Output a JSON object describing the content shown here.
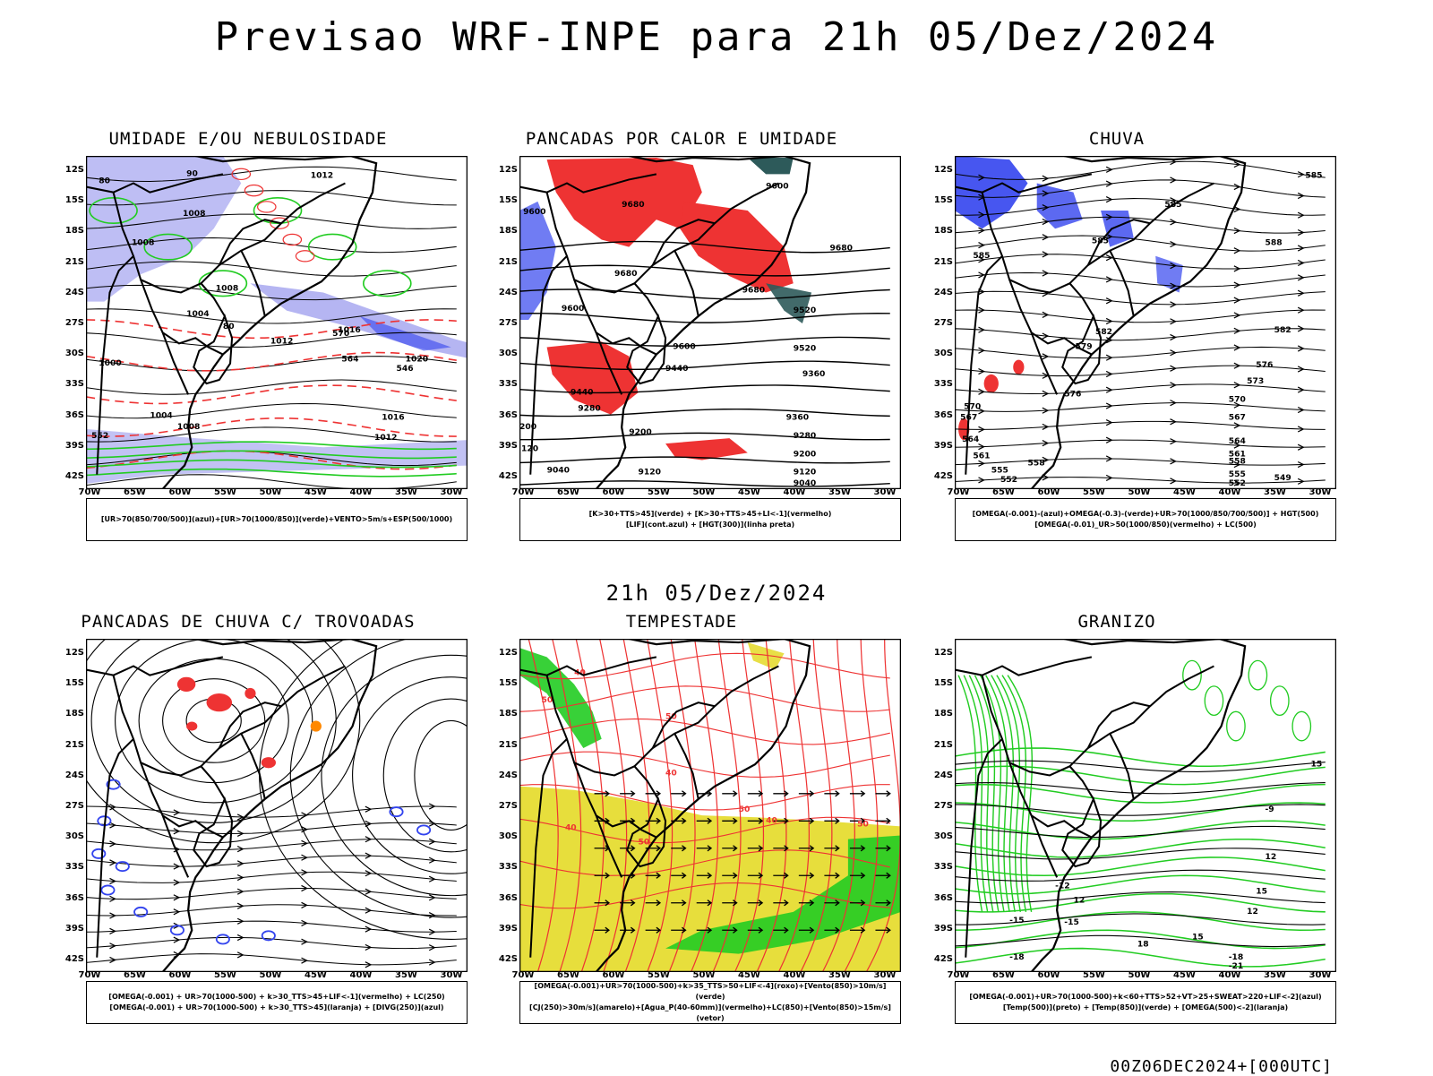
{
  "title": "Previsao WRF-INPE  para 21h 05/Dez/2024",
  "mid_label": "21h 05/Dez/2024",
  "footer": "00Z06DEC2024+[000UTC]",
  "lat_labels": [
    "12S",
    "15S",
    "18S",
    "21S",
    "24S",
    "27S",
    "30S",
    "33S",
    "36S",
    "39S",
    "42S"
  ],
  "lon_labels": [
    "70W",
    "65W",
    "60W",
    "55W",
    "50W",
    "45W",
    "40W",
    "35W",
    "30W"
  ],
  "colors": {
    "blue": "#3344ee",
    "lavender": "#a8a8f0",
    "green": "#22cc22",
    "red": "#ee3333",
    "dark_teal": "#2d5a5a",
    "yellow": "#e6dc32",
    "orange": "#ff8800"
  },
  "panels": [
    {
      "title": "UMIDADE E/OU NEBULOSIDADE",
      "legend": [
        "[UR>70(850/700/500)](azul)+[UR>70(1000/850)](verde)+VENTO>5m/s+ESP(500/1000)"
      ],
      "contour_labels": [
        "1012",
        "1008",
        "1008",
        "1004",
        "1008",
        "1012",
        "1016",
        "1020",
        "1016",
        "1012",
        "1008",
        "1004",
        "1000",
        "570",
        "564",
        "552",
        "546",
        "80",
        "80",
        "90"
      ]
    },
    {
      "title": "PANCADAS POR CALOR E UMIDADE",
      "legend": [
        "[K>30+TTS>45](verde)  +  [K>30+TTS>45+LI<-1](vermelho)",
        "[LIF](cont.azul)  +  [HGT(300)](linha preta)"
      ],
      "contour_labels": [
        "9600",
        "9680",
        "9600",
        "9680",
        "9680",
        "9680",
        "9520",
        "9600",
        "9600",
        "9520",
        "9440",
        "9360",
        "9440",
        "9360",
        "9280",
        "9280",
        "9200",
        "9200",
        "9120",
        "9120",
        "9040",
        "9040",
        "200",
        "120"
      ]
    },
    {
      "title": "CHUVA",
      "legend": [
        "[OMEGA(-0.001)-(azul)+OMEGA(-0.3)-(verde)+UR>70(1000/850/700/500)]  +  HGT(500)",
        "[OMEGA(-0.01)_UR>50(1000/850)(vermelho)  +  LC(500)"
      ],
      "contour_labels": [
        "585",
        "585",
        "588",
        "585",
        "585",
        "582",
        "582",
        "579",
        "576",
        "573",
        "570",
        "570",
        "567",
        "567",
        "564",
        "564",
        "561",
        "561",
        "558",
        "558",
        "555",
        "555",
        "552",
        "552",
        "549",
        "576"
      ]
    },
    {
      "title": "PANCADAS DE CHUVA C/ TROVOADAS",
      "legend": [
        "[OMEGA(-0.001)  +  UR>70(1000-500)  +  k>30_TTS>45+LIF<-1](vermelho)  +  LC(250)",
        "[OMEGA(-0.001)  +  UR>70(1000-500)  +  k>30_TTS>45](laranja)  +  [DIVG(250)](azul)"
      ],
      "contour_labels": []
    },
    {
      "title": "TEMPESTADE",
      "legend": [
        "[OMEGA(-0.001)+UR>70(1000-500)+k>35_TTS>50+LIF<-4](roxo)+[Vento(850)>10m/s](verde)",
        "[CJ(250)>30m/s](amarelo)+[Agua_P(40-60mm)](vermelho)+LC(850)+[Vento(850)>15m/s](vetor)"
      ],
      "contour_labels": [
        "40",
        "50",
        "50",
        "40",
        "50",
        "40",
        "40",
        "50",
        "50"
      ]
    },
    {
      "title": "GRANIZO",
      "legend": [
        "[OMEGA(-0.001)+UR>70(1000-500)+k<60+TTS>52+VT>25+SWEAT>220+LIF<-2](azul)",
        "[Temp(500)](preto)  +  [Temp(850)](verde)  +  [OMEGA(500)<-2](laranja)"
      ],
      "contour_labels": [
        "-9",
        "-12",
        "-15",
        "-18",
        "-15",
        "-18",
        "-21",
        "12",
        "15",
        "15",
        "12",
        "15",
        "18",
        "12"
      ]
    }
  ]
}
